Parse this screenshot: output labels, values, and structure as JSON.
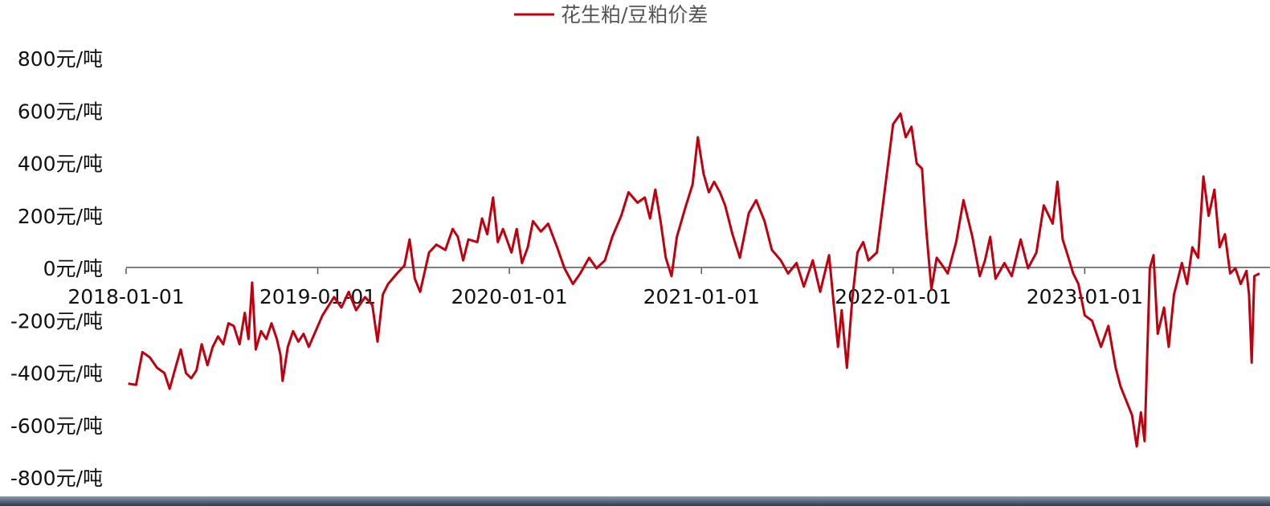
{
  "chart_data": {
    "type": "line",
    "legend": {
      "position": "top-center",
      "entries": [
        "花生粕/豆粕价差"
      ]
    },
    "y_unit_suffix": "元/吨",
    "ylim": [
      -800,
      800
    ],
    "y_ticks": [
      800,
      600,
      400,
      200,
      0,
      -200,
      -400,
      -600,
      -800
    ],
    "y_tick_labels": [
      "800元/吨",
      "600元/吨",
      "400元/吨",
      "200元/吨",
      "0元/吨",
      "-200元/吨",
      "-400元/吨",
      "-600元/吨",
      "-800元/吨"
    ],
    "x_ticks": [
      "2018-01-01",
      "2019-01-01",
      "2020-01-01",
      "2021-01-01",
      "2022-01-01",
      "2023-01-01"
    ],
    "x_range": [
      "2018-01-01",
      "2023-11-30"
    ],
    "grid": false,
    "series": [
      {
        "name": "花生粕/豆粕价差",
        "color": "#c0000f",
        "points": [
          [
            "2018-01-05",
            -440
          ],
          [
            "2018-01-20",
            -445
          ],
          [
            "2018-02-01",
            -320
          ],
          [
            "2018-02-15",
            -340
          ],
          [
            "2018-03-01",
            -380
          ],
          [
            "2018-03-15",
            -400
          ],
          [
            "2018-03-25",
            -460
          ],
          [
            "2018-04-05",
            -380
          ],
          [
            "2018-04-15",
            -310
          ],
          [
            "2018-04-25",
            -400
          ],
          [
            "2018-05-05",
            -420
          ],
          [
            "2018-05-15",
            -390
          ],
          [
            "2018-05-25",
            -290
          ],
          [
            "2018-06-05",
            -370
          ],
          [
            "2018-06-15",
            -300
          ],
          [
            "2018-06-25",
            -260
          ],
          [
            "2018-07-05",
            -290
          ],
          [
            "2018-07-15",
            -210
          ],
          [
            "2018-07-25",
            -220
          ],
          [
            "2018-08-05",
            -290
          ],
          [
            "2018-08-15",
            -170
          ],
          [
            "2018-08-22",
            -270
          ],
          [
            "2018-08-29",
            -55
          ],
          [
            "2018-09-05",
            -310
          ],
          [
            "2018-09-15",
            -240
          ],
          [
            "2018-09-25",
            -270
          ],
          [
            "2018-10-05",
            -210
          ],
          [
            "2018-10-15",
            -270
          ],
          [
            "2018-10-22",
            -330
          ],
          [
            "2018-10-26",
            -430
          ],
          [
            "2018-11-05",
            -300
          ],
          [
            "2018-11-15",
            -240
          ],
          [
            "2018-11-25",
            -280
          ],
          [
            "2018-12-05",
            -250
          ],
          [
            "2018-12-15",
            -300
          ],
          [
            "2019-01-10",
            -180
          ],
          [
            "2019-02-01",
            -110
          ],
          [
            "2019-02-15",
            -150
          ],
          [
            "2019-03-01",
            -90
          ],
          [
            "2019-03-15",
            -160
          ],
          [
            "2019-04-01",
            -110
          ],
          [
            "2019-04-15",
            -140
          ],
          [
            "2019-04-25",
            -280
          ],
          [
            "2019-05-05",
            -100
          ],
          [
            "2019-05-15",
            -60
          ],
          [
            "2019-06-01",
            -20
          ],
          [
            "2019-06-15",
            10
          ],
          [
            "2019-06-25",
            110
          ],
          [
            "2019-07-05",
            -40
          ],
          [
            "2019-07-15",
            -90
          ],
          [
            "2019-08-01",
            60
          ],
          [
            "2019-08-15",
            90
          ],
          [
            "2019-09-01",
            70
          ],
          [
            "2019-09-15",
            150
          ],
          [
            "2019-09-25",
            120
          ],
          [
            "2019-10-05",
            30
          ],
          [
            "2019-10-15",
            110
          ],
          [
            "2019-11-01",
            100
          ],
          [
            "2019-11-10",
            190
          ],
          [
            "2019-11-20",
            130
          ],
          [
            "2019-12-01",
            270
          ],
          [
            "2019-12-10",
            100
          ],
          [
            "2019-12-20",
            150
          ],
          [
            "2020-01-05",
            60
          ],
          [
            "2020-01-15",
            150
          ],
          [
            "2020-01-25",
            20
          ],
          [
            "2020-02-05",
            80
          ],
          [
            "2020-02-15",
            180
          ],
          [
            "2020-03-01",
            140
          ],
          [
            "2020-03-15",
            170
          ],
          [
            "2020-04-01",
            80
          ],
          [
            "2020-04-15",
            0
          ],
          [
            "2020-05-01",
            -60
          ],
          [
            "2020-05-15",
            -20
          ],
          [
            "2020-06-01",
            40
          ],
          [
            "2020-06-15",
            0
          ],
          [
            "2020-07-01",
            30
          ],
          [
            "2020-07-15",
            120
          ],
          [
            "2020-08-01",
            200
          ],
          [
            "2020-08-15",
            290
          ],
          [
            "2020-09-01",
            250
          ],
          [
            "2020-09-15",
            270
          ],
          [
            "2020-09-25",
            190
          ],
          [
            "2020-10-05",
            300
          ],
          [
            "2020-10-15",
            180
          ],
          [
            "2020-10-25",
            40
          ],
          [
            "2020-11-05",
            -30
          ],
          [
            "2020-11-15",
            120
          ],
          [
            "2020-12-01",
            230
          ],
          [
            "2020-12-15",
            320
          ],
          [
            "2020-12-25",
            500
          ],
          [
            "2021-01-05",
            360
          ],
          [
            "2021-01-15",
            290
          ],
          [
            "2021-01-25",
            330
          ],
          [
            "2021-02-05",
            290
          ],
          [
            "2021-02-15",
            240
          ],
          [
            "2021-03-01",
            130
          ],
          [
            "2021-03-15",
            40
          ],
          [
            "2021-04-01",
            210
          ],
          [
            "2021-04-15",
            260
          ],
          [
            "2021-05-01",
            180
          ],
          [
            "2021-05-15",
            70
          ],
          [
            "2021-06-01",
            30
          ],
          [
            "2021-06-15",
            -20
          ],
          [
            "2021-07-01",
            20
          ],
          [
            "2021-07-15",
            -70
          ],
          [
            "2021-08-01",
            30
          ],
          [
            "2021-08-15",
            -90
          ],
          [
            "2021-09-01",
            50
          ],
          [
            "2021-09-10",
            -140
          ],
          [
            "2021-09-18",
            -300
          ],
          [
            "2021-09-25",
            -160
          ],
          [
            "2021-10-05",
            -380
          ],
          [
            "2021-10-15",
            -120
          ],
          [
            "2021-10-25",
            60
          ],
          [
            "2021-11-05",
            100
          ],
          [
            "2021-11-15",
            30
          ],
          [
            "2021-12-01",
            60
          ],
          [
            "2021-12-15",
            280
          ],
          [
            "2022-01-01",
            550
          ],
          [
            "2022-01-15",
            590
          ],
          [
            "2022-01-25",
            500
          ],
          [
            "2022-02-05",
            540
          ],
          [
            "2022-02-15",
            400
          ],
          [
            "2022-02-25",
            380
          ],
          [
            "2022-03-05",
            150
          ],
          [
            "2022-03-15",
            -80
          ],
          [
            "2022-03-25",
            40
          ],
          [
            "2022-04-05",
            10
          ],
          [
            "2022-04-15",
            -20
          ],
          [
            "2022-05-01",
            100
          ],
          [
            "2022-05-15",
            260
          ],
          [
            "2022-06-01",
            120
          ],
          [
            "2022-06-15",
            -30
          ],
          [
            "2022-06-25",
            30
          ],
          [
            "2022-07-05",
            120
          ],
          [
            "2022-07-15",
            -40
          ],
          [
            "2022-08-01",
            20
          ],
          [
            "2022-08-15",
            -30
          ],
          [
            "2022-09-01",
            110
          ],
          [
            "2022-09-15",
            0
          ],
          [
            "2022-10-01",
            60
          ],
          [
            "2022-10-15",
            240
          ],
          [
            "2022-11-01",
            170
          ],
          [
            "2022-11-10",
            330
          ],
          [
            "2022-11-20",
            110
          ],
          [
            "2022-12-01",
            40
          ],
          [
            "2022-12-10",
            -20
          ],
          [
            "2022-12-20",
            -60
          ],
          [
            "2023-01-01",
            -180
          ],
          [
            "2023-01-15",
            -200
          ],
          [
            "2023-02-01",
            -300
          ],
          [
            "2023-02-15",
            -220
          ],
          [
            "2023-03-01",
            -380
          ],
          [
            "2023-03-10",
            -450
          ],
          [
            "2023-03-20",
            -500
          ],
          [
            "2023-04-01",
            -560
          ],
          [
            "2023-04-10",
            -680
          ],
          [
            "2023-04-18",
            -550
          ],
          [
            "2023-04-25",
            -660
          ],
          [
            "2023-05-05",
            0
          ],
          [
            "2023-05-12",
            50
          ],
          [
            "2023-05-20",
            -250
          ],
          [
            "2023-06-01",
            -150
          ],
          [
            "2023-06-10",
            -300
          ],
          [
            "2023-06-20",
            -100
          ],
          [
            "2023-07-05",
            20
          ],
          [
            "2023-07-15",
            -60
          ],
          [
            "2023-07-25",
            80
          ],
          [
            "2023-08-05",
            40
          ],
          [
            "2023-08-15",
            350
          ],
          [
            "2023-08-25",
            200
          ],
          [
            "2023-09-05",
            300
          ],
          [
            "2023-09-15",
            80
          ],
          [
            "2023-09-25",
            130
          ],
          [
            "2023-10-05",
            -20
          ],
          [
            "2023-10-15",
            0
          ],
          [
            "2023-10-25",
            -60
          ],
          [
            "2023-11-05",
            -10
          ],
          [
            "2023-11-10",
            -100
          ],
          [
            "2023-11-15",
            -360
          ],
          [
            "2023-11-20",
            -30
          ],
          [
            "2023-11-30",
            -20
          ]
        ]
      }
    ]
  }
}
